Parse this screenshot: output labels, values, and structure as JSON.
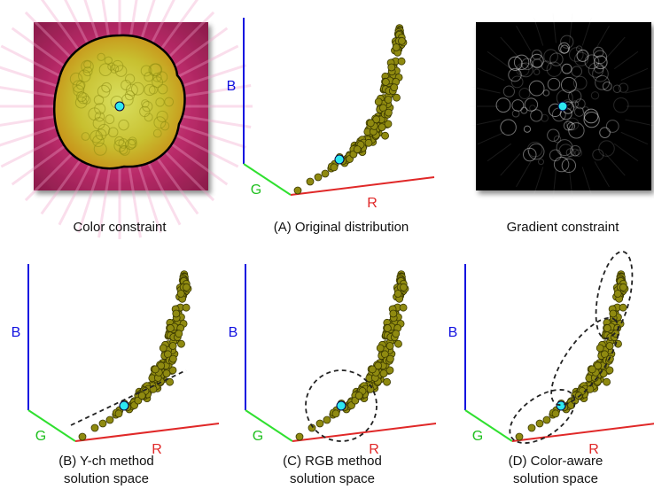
{
  "top": {
    "color_caption": "Color constraint",
    "original": {
      "caption": "(A) Original distribution",
      "axis_b": "B",
      "axis_g": "G",
      "axis_r": "R"
    },
    "gradient_caption": "Gradient constraint"
  },
  "bottom": [
    {
      "caption_lines": [
        "(B) Y-ch method",
        "solution space"
      ],
      "axis_b": "B",
      "axis_g": "G",
      "axis_r": "R"
    },
    {
      "caption_lines": [
        "(C) RGB method",
        "solution space"
      ],
      "axis_b": "B",
      "axis_g": "G",
      "axis_r": "R"
    },
    {
      "caption_lines": [
        "(D) Color-aware",
        "solution space"
      ],
      "axis_b": "B",
      "axis_g": "G",
      "axis_r": "R"
    }
  ]
}
